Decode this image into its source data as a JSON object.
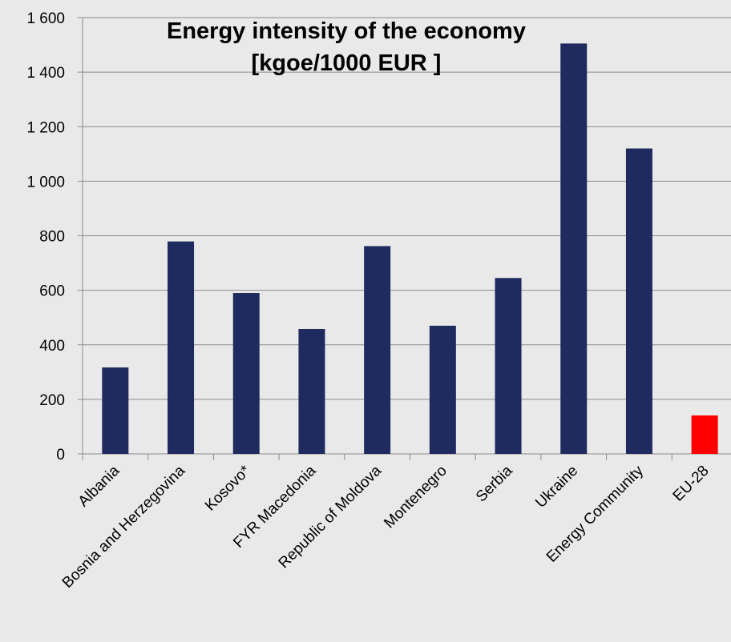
{
  "chart_data": {
    "type": "bar",
    "title_line1": "Energy intensity of the economy",
    "title_line2": "[kgoe/1000 EUR ]",
    "categories": [
      "Albania",
      "Bosnia and Herzegovina",
      "Kosovo*",
      "FYR Macedonia",
      "Republic of Moldova",
      "Montenegro",
      "Serbia",
      "Ukraine",
      "Energy Community",
      "EU-28"
    ],
    "values": [
      317,
      779,
      590,
      458,
      762,
      470,
      645,
      1505,
      1120,
      141
    ],
    "bar_colors": [
      "#1f2a5e",
      "#1f2a5e",
      "#1f2a5e",
      "#1f2a5e",
      "#1f2a5e",
      "#1f2a5e",
      "#1f2a5e",
      "#1f2a5e",
      "#1f2a5e",
      "#ff0000"
    ],
    "y_ticks": [
      0,
      200,
      400,
      600,
      800,
      1000,
      1200,
      1400,
      1600
    ],
    "y_tick_labels": [
      "0",
      "200",
      "400",
      "600",
      "800",
      "1 000",
      "1 200",
      "1 400",
      "1 600"
    ],
    "ylim": [
      0,
      1600
    ],
    "grid": true
  }
}
